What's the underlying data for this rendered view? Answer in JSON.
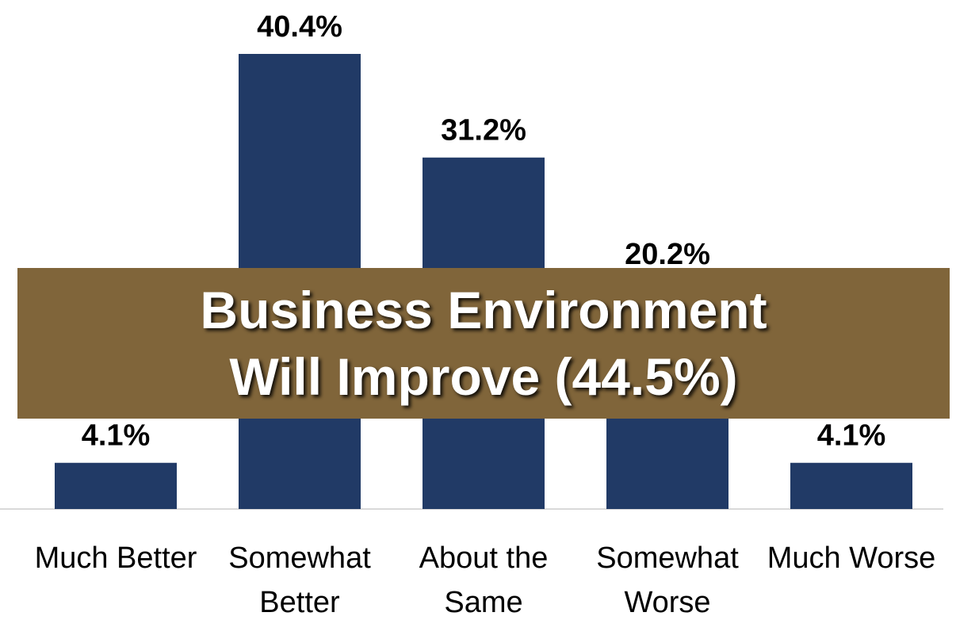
{
  "chart_data": {
    "type": "bar",
    "categories": [
      [
        "Much Better"
      ],
      [
        "Somewhat",
        "Better"
      ],
      [
        "About the",
        "Same"
      ],
      [
        "Somewhat",
        "Worse"
      ],
      [
        "Much Worse"
      ]
    ],
    "values": [
      4.1,
      40.4,
      31.2,
      20.2,
      4.1
    ],
    "value_labels": [
      "4.1%",
      "40.4%",
      "31.2%",
      "20.2%",
      "4.1%"
    ],
    "bar_color": "#213a66",
    "ylim": [
      0,
      40.4
    ],
    "grid": false,
    "annotation_line1": "Business Environment",
    "annotation_line2": "Will Improve (44.5%)",
    "banner_color": "#80653a"
  }
}
